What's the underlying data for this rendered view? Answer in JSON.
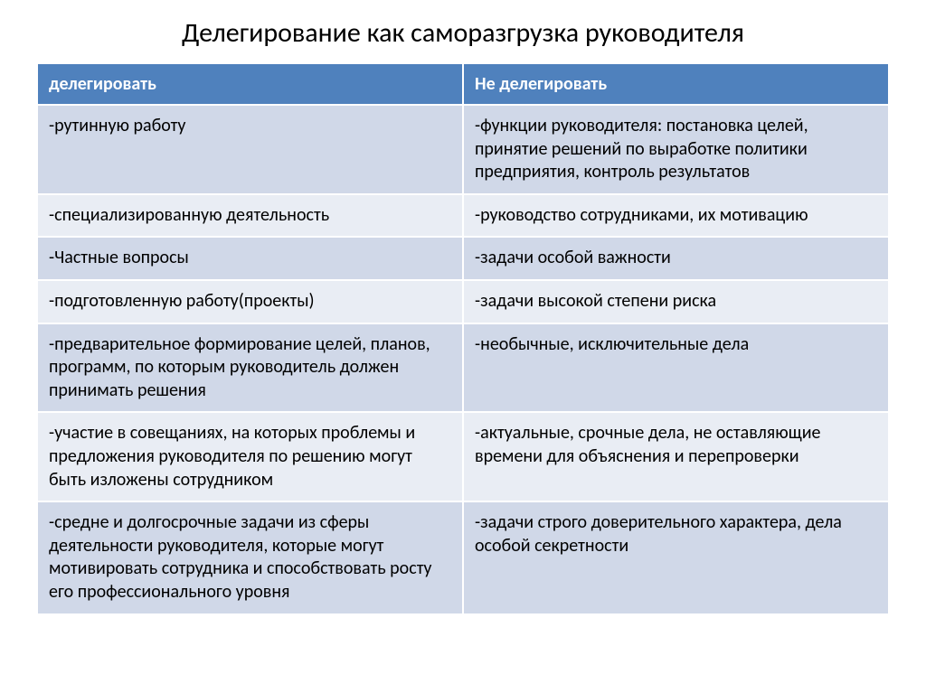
{
  "title": "Делегирование как саморазгрузка руководителя",
  "table": {
    "type": "table",
    "header_bg": "#4f81bd",
    "header_color": "#ffffff",
    "row_odd_bg": "#d0d8e8",
    "row_even_bg": "#e9edf4",
    "border_color": "#ffffff",
    "font_size": 20,
    "columns": [
      {
        "label": "делегировать"
      },
      {
        "label": "Не делегировать"
      }
    ],
    "rows": [
      {
        "c0": "-рутинную работу",
        "c1": "-функции руководителя: постановка целей, принятие решений по выработке политики предприятия, контроль результатов"
      },
      {
        "c0": "-специализированную деятельность",
        "c1": "-руководство сотрудниками, их мотивацию"
      },
      {
        "c0": "-Частные вопросы",
        "c1": "-задачи особой важности"
      },
      {
        "c0": "-подготовленную работу(проекты)",
        "c1": "-задачи высокой степени риска"
      },
      {
        "c0": "-предварительное формирование целей, планов, программ, по которым руководитель должен принимать решения",
        "c1": "-необычные, исключительные дела"
      },
      {
        "c0": "-участие в совещаниях, на которых проблемы и предложения руководителя по решению могут быть изложены сотрудником",
        "c1": "-актуальные, срочные дела, не оставляющие времени для объяснения и перепроверки"
      },
      {
        "c0": "-средне и долгосрочные задачи из сферы деятельности руководителя, которые могут мотивировать сотрудника и способствовать росту его профессионального уровня",
        "c1": "-задачи строго доверительного характера, дела особой секретности"
      }
    ]
  }
}
